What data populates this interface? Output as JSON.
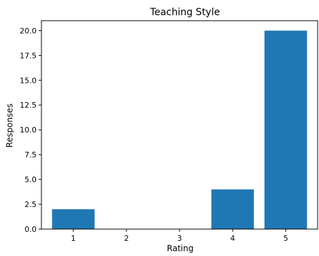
{
  "chart_data": {
    "type": "bar",
    "title": "Teaching Style",
    "xlabel": "Rating",
    "ylabel": "Responses",
    "categories": [
      "1",
      "2",
      "3",
      "4",
      "5"
    ],
    "values": [
      2,
      0,
      0,
      4,
      20
    ],
    "ylim": [
      0,
      21
    ],
    "yticks": [
      "0.0",
      "2.5",
      "5.0",
      "7.5",
      "10.0",
      "12.5",
      "15.0",
      "17.5",
      "20.0"
    ],
    "ytick_values": [
      0,
      2.5,
      5,
      7.5,
      10,
      12.5,
      15,
      17.5,
      20
    ],
    "xlim": [
      0.4,
      5.6
    ],
    "bar_color": "#1f77b4",
    "grid": false,
    "legend": "none"
  }
}
